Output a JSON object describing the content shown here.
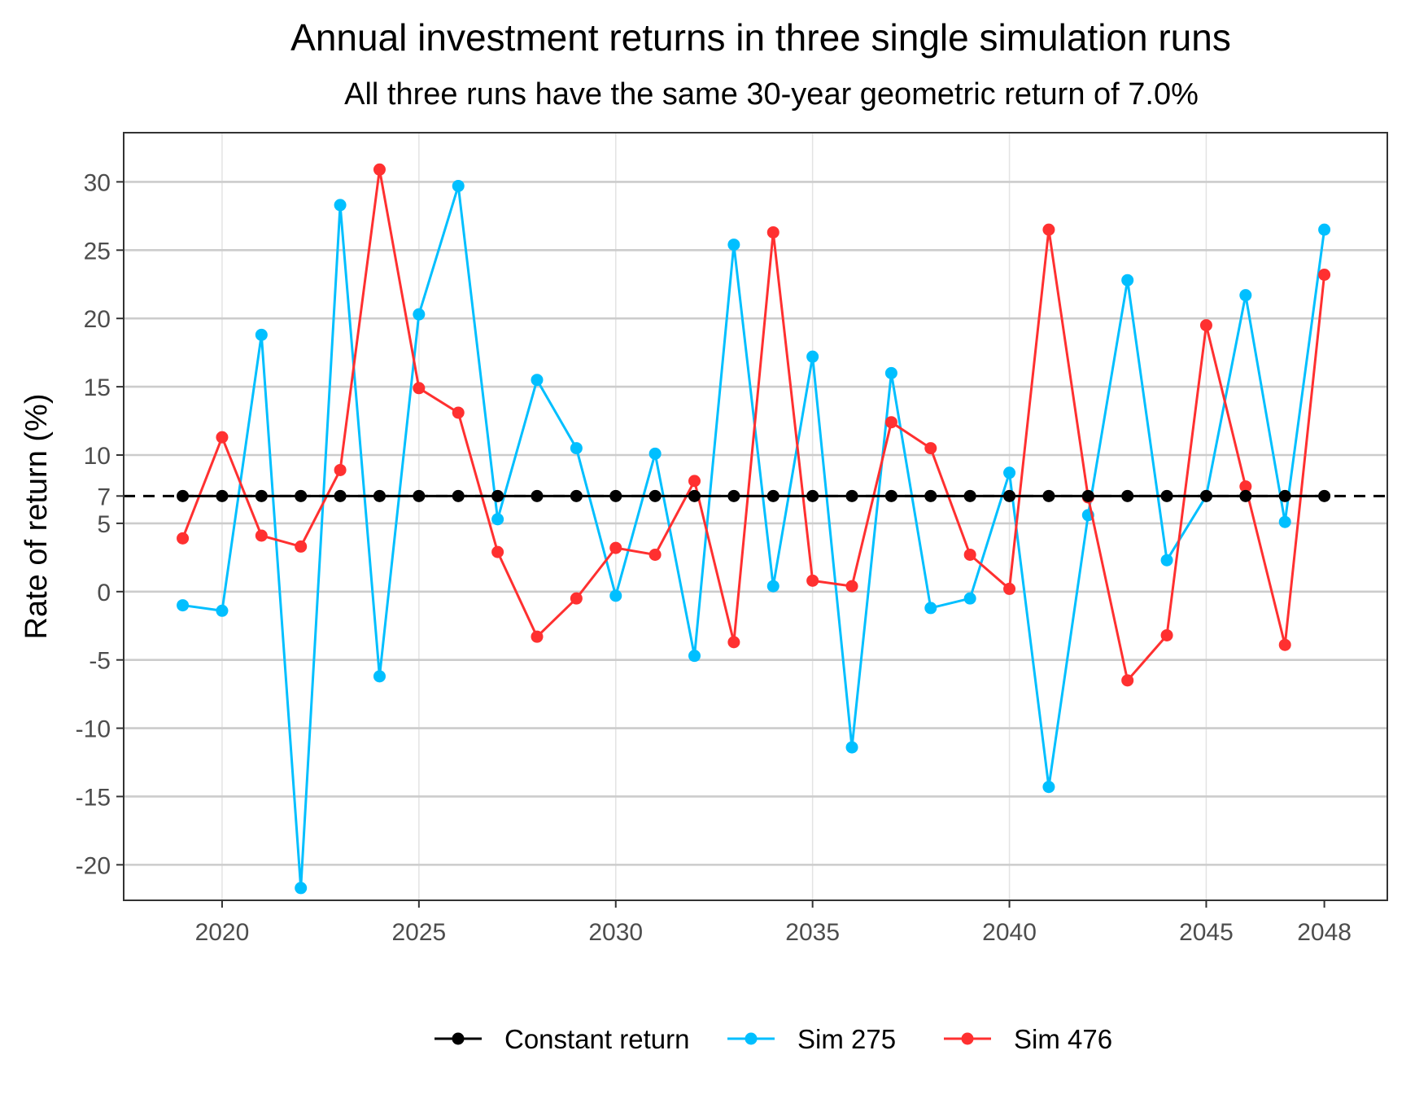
{
  "chart_data": {
    "type": "line",
    "title": "Annual investment returns in three single simulation runs",
    "subtitle": "All three runs have the same 30-year geometric return of 7.0%",
    "xlabel": "",
    "ylabel": "Rate of return (%)",
    "xlim": [
      2017.5,
      2049.6
    ],
    "ylim": [
      -22.6,
      33.6
    ],
    "x_ticks": [
      2020,
      2025,
      2030,
      2035,
      2040,
      2045,
      2048
    ],
    "x_tick_labels": [
      "2020",
      "2025",
      "2030",
      "2035",
      "2040",
      "2045",
      "2048"
    ],
    "y_ticks": [
      30,
      25,
      20,
      15,
      10,
      7,
      5,
      0,
      -5,
      -10,
      -15,
      -20
    ],
    "y_tick_labels": [
      "30",
      "25",
      "20",
      "15",
      "10",
      "7",
      "5",
      "0",
      "-5",
      "-10",
      "-15",
      "-20"
    ],
    "reference_line": {
      "y": 7,
      "style": "dashed",
      "color": "#000000"
    },
    "grid": true,
    "legend_position": "bottom",
    "x": [
      2019,
      2020,
      2021,
      2022,
      2023,
      2024,
      2025,
      2026,
      2027,
      2028,
      2029,
      2030,
      2031,
      2032,
      2033,
      2034,
      2035,
      2036,
      2037,
      2038,
      2039,
      2040,
      2041,
      2042,
      2043,
      2044,
      2045,
      2046,
      2047,
      2048
    ],
    "series": [
      {
        "name": "Constant return",
        "color": "#000000",
        "values": [
          7,
          7,
          7,
          7,
          7,
          7,
          7,
          7,
          7,
          7,
          7,
          7,
          7,
          7,
          7,
          7,
          7,
          7,
          7,
          7,
          7,
          7,
          7,
          7,
          7,
          7,
          7,
          7,
          7,
          7
        ]
      },
      {
        "name": "Sim 275",
        "color": "#00BFFF",
        "values": [
          -1.0,
          -1.4,
          18.8,
          -21.7,
          28.3,
          -6.2,
          20.3,
          29.7,
          5.3,
          15.5,
          10.5,
          -0.3,
          10.1,
          -4.7,
          25.4,
          0.4,
          17.2,
          -11.4,
          16.0,
          -1.2,
          -0.5,
          8.7,
          -14.3,
          5.6,
          22.8,
          2.3,
          7.0,
          21.7,
          5.1,
          26.5
        ]
      },
      {
        "name": "Sim 476",
        "color": "#FF3030",
        "values": [
          3.9,
          11.3,
          4.1,
          3.3,
          8.9,
          30.9,
          14.9,
          13.1,
          2.9,
          -3.3,
          -0.5,
          3.2,
          2.7,
          8.1,
          -3.7,
          26.3,
          0.8,
          0.4,
          12.4,
          10.5,
          2.7,
          0.2,
          26.5,
          6.9,
          -6.5,
          -3.2,
          19.5,
          7.7,
          -3.9,
          23.2
        ]
      }
    ]
  }
}
